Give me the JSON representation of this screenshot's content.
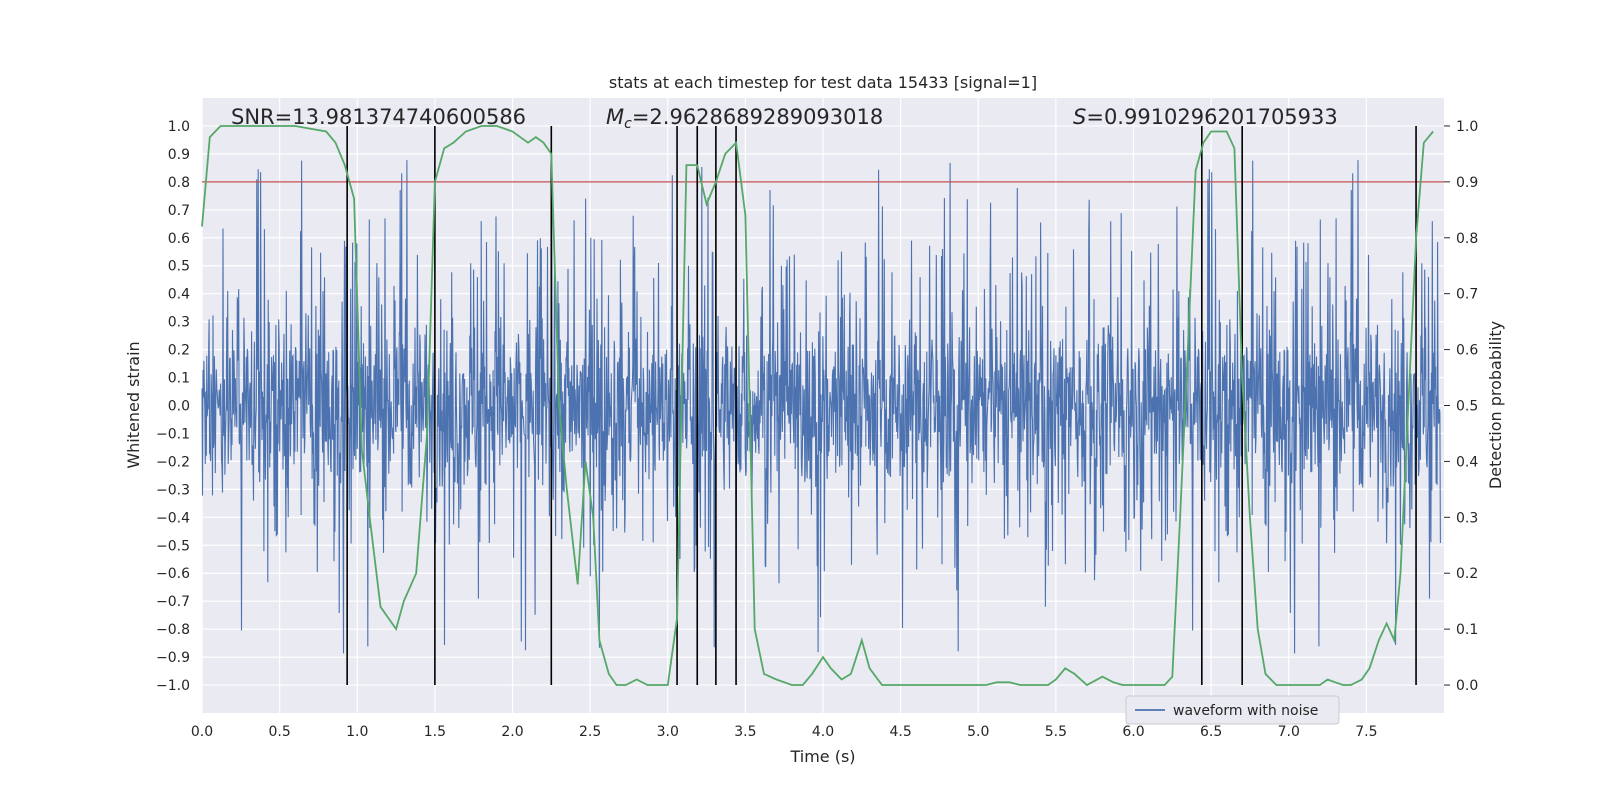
{
  "chart_data": {
    "type": "line",
    "title": "stats at each timestep for test data 15433 [signal=1]",
    "xlabel": "Time (s)",
    "ylabel_left": "Whitened strain",
    "ylabel_right": "Detection probability",
    "xlim": [
      0.0,
      8.0
    ],
    "ylim_left": [
      -1.1,
      1.1
    ],
    "ylim_right": [
      -0.05,
      1.05
    ],
    "x_ticks": [
      "0.0",
      "0.5",
      "1.0",
      "1.5",
      "2.0",
      "2.5",
      "3.0",
      "3.5",
      "4.0",
      "4.5",
      "5.0",
      "5.5",
      "6.0",
      "6.5",
      "7.0",
      "7.5"
    ],
    "y_left_ticks": [
      "1.0",
      "0.9",
      "0.8",
      "0.7",
      "0.6",
      "0.5",
      "0.4",
      "0.3",
      "0.2",
      "0.1",
      "0.0",
      "-0.1",
      "-0.2",
      "-0.3",
      "-0.4",
      "-0.5",
      "-0.6",
      "-0.7",
      "-0.8",
      "-0.9",
      "-1.0"
    ],
    "y_right_ticks": [
      "1.0",
      "0.9",
      "0.8",
      "0.7",
      "0.6",
      "0.5",
      "0.4",
      "0.3",
      "0.2",
      "0.1",
      "0.0"
    ],
    "annotations": {
      "snr": "SNR=13.981374740600586",
      "mc_symbol": "M",
      "mc_sub": "c",
      "mc_value": "=2.9628689289093018",
      "s_symbol": "S",
      "s_value": "=0.9910296201705933"
    },
    "threshold": {
      "value": 0.9,
      "axis": "right",
      "color": "#c44e52"
    },
    "vertical_lines": [
      0.935,
      1.5,
      2.25,
      3.06,
      3.19,
      3.31,
      3.44,
      6.44,
      6.7,
      7.82
    ],
    "waveform": {
      "name": "waveform with noise",
      "color": "#4c72b0",
      "note": "dense noise between roughly -0.4 and 0.4 with spikes up to about +/-1.0"
    },
    "detection_probability": {
      "color": "#55a868",
      "x": [
        0.0,
        0.05,
        0.12,
        0.3,
        0.6,
        0.8,
        0.86,
        0.92,
        0.98,
        1.03,
        1.08,
        1.15,
        1.25,
        1.3,
        1.38,
        1.45,
        1.5,
        1.56,
        1.62,
        1.7,
        1.8,
        1.9,
        2.0,
        2.1,
        2.15,
        2.2,
        2.25,
        2.3,
        2.35,
        2.42,
        2.47,
        2.52,
        2.56,
        2.62,
        2.67,
        2.73,
        2.8,
        2.87,
        2.93,
        3.0,
        3.06,
        3.12,
        3.19,
        3.25,
        3.31,
        3.37,
        3.44,
        3.5,
        3.56,
        3.62,
        3.7,
        3.8,
        3.87,
        3.93,
        4.0,
        4.05,
        4.12,
        4.18,
        4.25,
        4.3,
        4.38,
        4.5,
        4.6,
        4.8,
        5.05,
        5.12,
        5.2,
        5.27,
        5.35,
        5.45,
        5.5,
        5.56,
        5.62,
        5.7,
        5.8,
        5.87,
        5.93,
        6.0,
        6.1,
        6.2,
        6.25,
        6.3,
        6.35,
        6.4,
        6.45,
        6.5,
        6.55,
        6.6,
        6.65,
        6.7,
        6.75,
        6.8,
        6.85,
        6.92,
        7.0,
        7.05,
        7.1,
        7.2,
        7.25,
        7.3,
        7.35,
        7.4,
        7.47,
        7.52,
        7.58,
        7.63,
        7.68,
        7.72,
        7.77,
        7.82,
        7.87,
        7.93
      ],
      "y": [
        0.82,
        0.98,
        1.0,
        1.0,
        1.0,
        0.99,
        0.97,
        0.93,
        0.87,
        0.42,
        0.3,
        0.14,
        0.1,
        0.15,
        0.2,
        0.45,
        0.9,
        0.96,
        0.97,
        0.99,
        1.0,
        1.0,
        0.99,
        0.97,
        0.98,
        0.97,
        0.95,
        0.5,
        0.35,
        0.18,
        0.4,
        0.3,
        0.08,
        0.02,
        0.0,
        0.0,
        0.01,
        0.0,
        0.0,
        0.0,
        0.12,
        0.93,
        0.93,
        0.86,
        0.9,
        0.95,
        0.97,
        0.84,
        0.1,
        0.02,
        0.01,
        0.0,
        0.0,
        0.02,
        0.05,
        0.03,
        0.01,
        0.02,
        0.08,
        0.03,
        0.0,
        0.0,
        0.0,
        0.0,
        0.0,
        0.005,
        0.005,
        0.0,
        0.0,
        0.0,
        0.01,
        0.03,
        0.02,
        0.0,
        0.015,
        0.005,
        0.0,
        0.0,
        0.0,
        0.0,
        0.015,
        0.3,
        0.6,
        0.92,
        0.97,
        0.99,
        0.99,
        0.99,
        0.96,
        0.55,
        0.3,
        0.1,
        0.02,
        0.0,
        0.0,
        0.0,
        0.0,
        0.0,
        0.01,
        0.005,
        0.0,
        0.0,
        0.01,
        0.03,
        0.08,
        0.11,
        0.08,
        0.2,
        0.5,
        0.8,
        0.97,
        0.99
      ]
    },
    "legend": {
      "label": "waveform with noise",
      "location": "lower-right"
    }
  }
}
